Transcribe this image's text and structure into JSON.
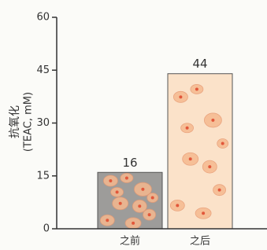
{
  "chart_data": {
    "type": "bar",
    "y_label": [
      "抗氧化",
      "(TEAC, mM)"
    ],
    "categories": [
      "之前",
      "之后"
    ],
    "values": [
      16,
      44
    ],
    "colors": [
      "#9d9c9a",
      "#fbe2c9"
    ],
    "ylim": [
      0,
      60
    ],
    "yticks": [
      0,
      15,
      30,
      45,
      60
    ],
    "grid": false
  }
}
